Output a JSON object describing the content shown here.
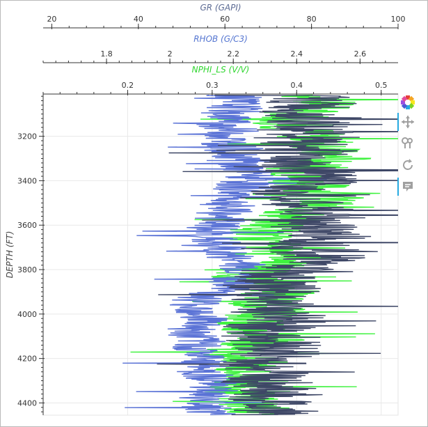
{
  "chart_data": {
    "type": "line",
    "orientation": "vertical-log",
    "y_axis": {
      "label": "DEPTH (FT)",
      "range": [
        3010,
        4455
      ],
      "reversed": true,
      "ticks": [
        3200,
        3400,
        3600,
        3800,
        4000,
        4200,
        4400
      ]
    },
    "top_axes": [
      {
        "label": "GR (GAPI)",
        "color": "#5c6b93",
        "range": [
          18,
          100
        ],
        "ticks": [
          20,
          40,
          60,
          80,
          100
        ]
      },
      {
        "label": "RHOB (G/C3)",
        "color": "#5576d1",
        "range": [
          1.6,
          2.72
        ],
        "ticks": [
          "1.8",
          "2",
          "2.2",
          "2.4",
          "2.6"
        ]
      },
      {
        "label": "NPHI_LS (V/V)",
        "color": "#2fd62f",
        "range": [
          0.1,
          0.52
        ],
        "ticks": [
          "0.2",
          "0.3",
          "0.4",
          "0.5"
        ]
      }
    ],
    "grid": true,
    "series": [
      {
        "name": "GR",
        "color": "#3e4766",
        "depth": [
          3030,
          3060,
          3090,
          3120,
          3150,
          3180,
          3210,
          3240,
          3270,
          3300,
          3330,
          3360,
          3390,
          3420,
          3450,
          3480,
          3510,
          3540,
          3570,
          3600,
          3630,
          3660,
          3690,
          3720,
          3750,
          3780,
          3810,
          3840,
          3870,
          3900,
          3930,
          3960,
          3990,
          4020,
          4050,
          4080,
          4110,
          4140,
          4170,
          4200,
          4230,
          4260,
          4290,
          4320,
          4350,
          4380,
          4410,
          4440
        ],
        "values": [
          79,
          80,
          78,
          81,
          77,
          79,
          76,
          78,
          80,
          77,
          75,
          79,
          81,
          80,
          76,
          74,
          78,
          80,
          82,
          79,
          83,
          84,
          82,
          81,
          84,
          78,
          74,
          72,
          70,
          71,
          73,
          70,
          72,
          74,
          71,
          69,
          70,
          73,
          72,
          70,
          68,
          71,
          69,
          70,
          72,
          71,
          70,
          72
        ]
      },
      {
        "name": "RHOB",
        "color": "#5b73d6",
        "depth": [
          3030,
          3060,
          3090,
          3120,
          3150,
          3180,
          3210,
          3240,
          3270,
          3300,
          3330,
          3360,
          3390,
          3420,
          3450,
          3480,
          3510,
          3540,
          3570,
          3600,
          3630,
          3660,
          3690,
          3720,
          3750,
          3780,
          3810,
          3840,
          3870,
          3900,
          3930,
          3960,
          3990,
          4020,
          4050,
          4080,
          4110,
          4140,
          4170,
          4200,
          4230,
          4260,
          4290,
          4320,
          4350,
          4380,
          4410,
          4440
        ],
        "values": [
          2.2,
          2.21,
          2.2,
          2.19,
          2.17,
          2.2,
          2.18,
          2.19,
          2.2,
          2.23,
          2.22,
          2.24,
          2.25,
          2.23,
          2.22,
          2.2,
          2.18,
          2.17,
          2.16,
          2.14,
          2.12,
          2.13,
          2.15,
          2.17,
          2.19,
          2.23,
          2.24,
          2.22,
          2.18,
          2.16,
          2.1,
          2.08,
          2.1,
          2.12,
          2.1,
          2.06,
          2.08,
          2.1,
          2.09,
          2.1,
          2.12,
          2.1,
          2.14,
          2.16,
          2.12,
          2.1,
          2.12,
          2.13
        ]
      },
      {
        "name": "NPHI_LS",
        "color": "#3ef23e",
        "depth": [
          3030,
          3060,
          3090,
          3120,
          3150,
          3180,
          3210,
          3240,
          3270,
          3300,
          3330,
          3360,
          3390,
          3420,
          3450,
          3480,
          3510,
          3540,
          3570,
          3600,
          3630,
          3660,
          3690,
          3720,
          3750,
          3780,
          3810,
          3840,
          3870,
          3900,
          3930,
          3960,
          3990,
          4020,
          4050,
          4080,
          4110,
          4140,
          4170,
          4200,
          4230,
          4260,
          4290,
          4320,
          4350,
          4380,
          4410,
          4440
        ],
        "values": [
          0.42,
          0.43,
          0.41,
          0.4,
          0.39,
          0.41,
          0.42,
          0.44,
          0.43,
          0.45,
          0.42,
          0.41,
          0.4,
          0.42,
          0.43,
          0.44,
          0.42,
          0.4,
          0.39,
          0.38,
          0.36,
          0.35,
          0.37,
          0.39,
          0.41,
          0.37,
          0.35,
          0.34,
          0.36,
          0.38,
          0.37,
          0.36,
          0.37,
          0.35,
          0.34,
          0.36,
          0.37,
          0.35,
          0.33,
          0.34,
          0.35,
          0.33,
          0.35,
          0.34,
          0.33,
          0.34,
          0.35,
          0.36
        ]
      }
    ]
  },
  "toolbar": {
    "tools": [
      "bokeh-logo",
      "pan",
      "wheel-zoom",
      "reset",
      "hover"
    ]
  }
}
